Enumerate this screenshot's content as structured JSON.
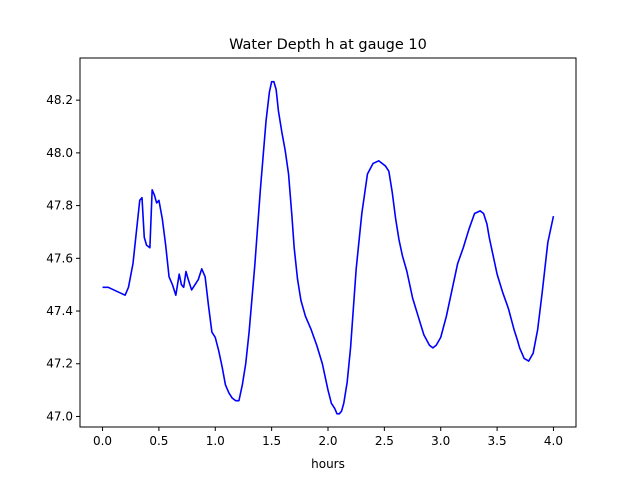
{
  "chart_data": {
    "type": "line",
    "title": "Water Depth h at gauge 10",
    "xlabel": "hours",
    "ylabel": "",
    "xlim": [
      -0.2,
      4.2
    ],
    "ylim": [
      46.96,
      48.36
    ],
    "xticks": [
      0.0,
      0.5,
      1.0,
      1.5,
      2.0,
      2.5,
      3.0,
      3.5,
      4.0
    ],
    "xtick_labels": [
      "0.0",
      "0.5",
      "1.0",
      "1.5",
      "2.0",
      "2.5",
      "3.0",
      "3.5",
      "4.0"
    ],
    "yticks": [
      47.0,
      47.2,
      47.4,
      47.6,
      47.8,
      48.0,
      48.2
    ],
    "ytick_labels": [
      "47.0",
      "47.2",
      "47.4",
      "47.6",
      "47.8",
      "48.0",
      "48.2"
    ],
    "grid": false,
    "line_color": "#0000ff",
    "series": [
      {
        "name": "",
        "x": [
          0.0,
          0.05,
          0.1,
          0.15,
          0.2,
          0.23,
          0.27,
          0.3,
          0.33,
          0.35,
          0.37,
          0.39,
          0.42,
          0.44,
          0.46,
          0.48,
          0.5,
          0.53,
          0.56,
          0.59,
          0.62,
          0.65,
          0.68,
          0.7,
          0.72,
          0.74,
          0.76,
          0.79,
          0.82,
          0.85,
          0.88,
          0.91,
          0.94,
          0.97,
          1.0,
          1.03,
          1.06,
          1.09,
          1.12,
          1.15,
          1.18,
          1.21,
          1.24,
          1.27,
          1.3,
          1.35,
          1.4,
          1.45,
          1.48,
          1.5,
          1.52,
          1.54,
          1.56,
          1.59,
          1.62,
          1.65,
          1.68,
          1.7,
          1.73,
          1.76,
          1.8,
          1.85,
          1.9,
          1.95,
          2.0,
          2.03,
          2.06,
          2.08,
          2.1,
          2.12,
          2.14,
          2.17,
          2.2,
          2.25,
          2.3,
          2.35,
          2.4,
          2.45,
          2.48,
          2.51,
          2.54,
          2.57,
          2.6,
          2.63,
          2.66,
          2.7,
          2.75,
          2.8,
          2.85,
          2.9,
          2.93,
          2.96,
          3.0,
          3.05,
          3.1,
          3.15,
          3.2,
          3.25,
          3.3,
          3.35,
          3.38,
          3.41,
          3.43,
          3.46,
          3.5,
          3.55,
          3.6,
          3.65,
          3.68,
          3.7,
          3.74,
          3.78,
          3.82,
          3.86,
          3.9,
          3.95,
          4.0
        ],
        "y": [
          47.49,
          47.49,
          47.48,
          47.47,
          47.46,
          47.49,
          47.58,
          47.7,
          47.82,
          47.83,
          47.68,
          47.65,
          47.64,
          47.86,
          47.84,
          47.81,
          47.82,
          47.75,
          47.65,
          47.53,
          47.5,
          47.46,
          47.54,
          47.5,
          47.49,
          47.55,
          47.52,
          47.48,
          47.5,
          47.52,
          47.56,
          47.53,
          47.42,
          47.32,
          47.3,
          47.25,
          47.19,
          47.12,
          47.09,
          47.07,
          47.06,
          47.06,
          47.12,
          47.2,
          47.32,
          47.57,
          47.86,
          48.12,
          48.23,
          48.27,
          48.27,
          48.24,
          48.16,
          48.08,
          48.01,
          47.92,
          47.76,
          47.64,
          47.52,
          47.44,
          47.38,
          47.33,
          47.27,
          47.2,
          47.1,
          47.05,
          47.03,
          47.01,
          47.01,
          47.02,
          47.05,
          47.13,
          47.26,
          47.56,
          47.77,
          47.92,
          47.96,
          47.97,
          47.96,
          47.95,
          47.93,
          47.85,
          47.75,
          47.67,
          47.61,
          47.55,
          47.45,
          47.38,
          47.31,
          47.27,
          47.26,
          47.27,
          47.3,
          47.38,
          47.48,
          47.58,
          47.64,
          47.71,
          47.77,
          47.78,
          47.77,
          47.73,
          47.68,
          47.62,
          47.54,
          47.47,
          47.41,
          47.33,
          47.29,
          47.26,
          47.22,
          47.21,
          47.24,
          47.33,
          47.47,
          47.66,
          47.76
        ]
      }
    ]
  }
}
